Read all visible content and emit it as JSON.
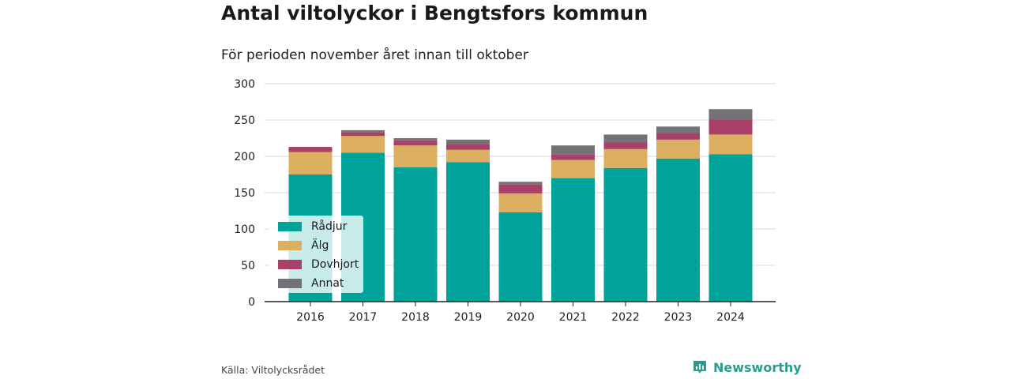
{
  "title": "Antal viltolyckor i Bengtsfors kommun",
  "subtitle": "För perioden november året innan till oktober",
  "source": "Källa: Viltolycksrådet",
  "brand": {
    "name": "Newsworthy",
    "icon": "newsworthy-logo-icon",
    "color": "#2a9d8f"
  },
  "chart_data": {
    "type": "bar",
    "stacked": true,
    "categories": [
      "2016",
      "2017",
      "2018",
      "2019",
      "2020",
      "2021",
      "2022",
      "2023",
      "2024"
    ],
    "series": [
      {
        "name": "Rådjur",
        "color": "#00a39a",
        "values": [
          175,
          205,
          185,
          192,
          123,
          170,
          184,
          197,
          203
        ]
      },
      {
        "name": "Älg",
        "color": "#dcae5f",
        "values": [
          31,
          23,
          30,
          17,
          26,
          25,
          26,
          26,
          27
        ]
      },
      {
        "name": "Dovhjort",
        "color": "#a84068",
        "values": [
          7,
          5,
          7,
          8,
          12,
          8,
          9,
          9,
          21
        ]
      },
      {
        "name": "Annat",
        "color": "#737277",
        "values": [
          0,
          3,
          3,
          6,
          4,
          12,
          11,
          9,
          14
        ]
      }
    ],
    "ylim": [
      0,
      300
    ],
    "yticks": [
      0,
      50,
      100,
      150,
      200,
      250,
      300
    ],
    "grid": true,
    "legend_position": "bottom-left"
  }
}
